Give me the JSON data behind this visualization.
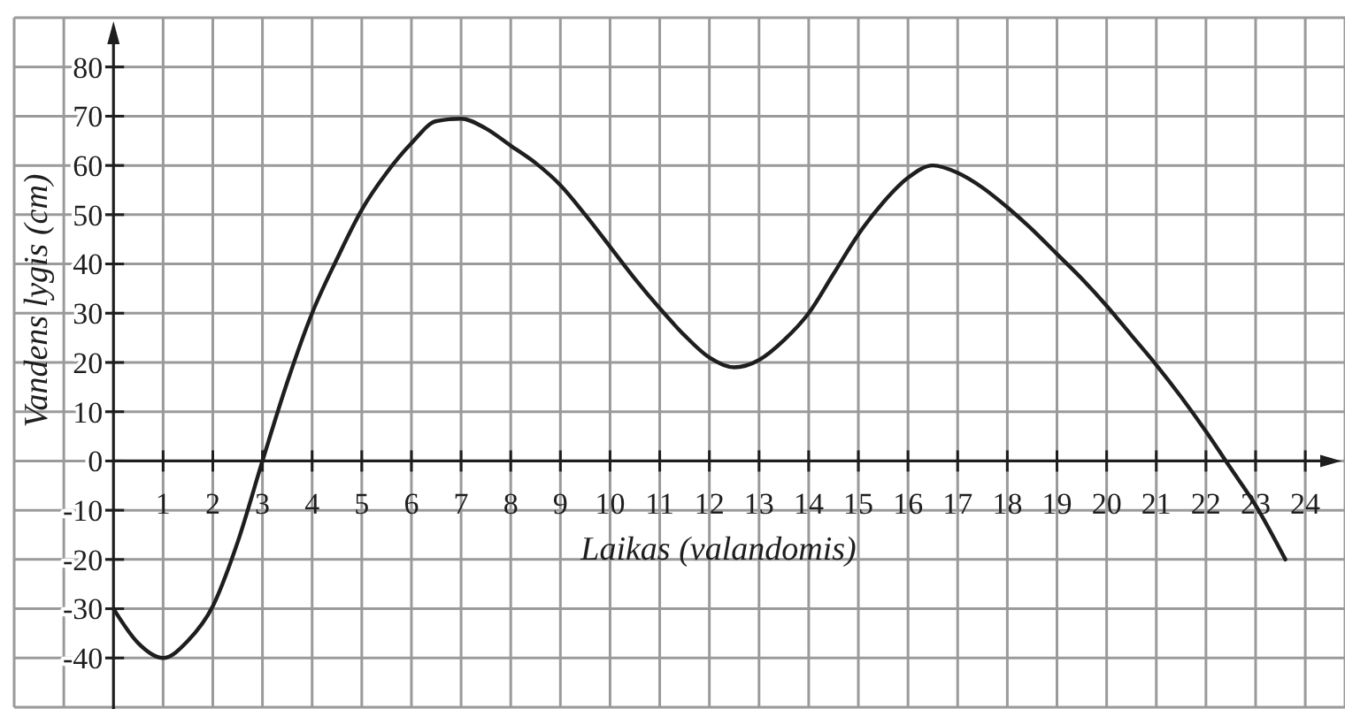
{
  "chart_data": {
    "type": "line",
    "xlabel": "Laikas (valandomis)",
    "ylabel": "Vandens lygis (cm)",
    "x": [
      0,
      0.5,
      1,
      1.5,
      2,
      2.5,
      3,
      3.5,
      4,
      4.5,
      5,
      5.5,
      6,
      6.5,
      7,
      7.5,
      8,
      8.5,
      9,
      9.5,
      10,
      10.5,
      11,
      11.5,
      12,
      12.5,
      13,
      13.5,
      14,
      14.5,
      15,
      15.5,
      16,
      16.5,
      17,
      17.5,
      18,
      18.5,
      19,
      19.5,
      20,
      20.5,
      21,
      21.5,
      22,
      22.5,
      23,
      23.6
    ],
    "series": [
      {
        "color": "#1e1e1e",
        "values": [
          -30,
          -37,
          -40,
          -36.5,
          -29.5,
          -16.5,
          0,
          16,
          30,
          41,
          51,
          58.5,
          64.5,
          69,
          69.5,
          67.5,
          64,
          60.5,
          56,
          50,
          43.5,
          37,
          31,
          25.5,
          21,
          19,
          20.5,
          24.5,
          30,
          38,
          46,
          52.5,
          57.5,
          60,
          58.5,
          55.5,
          51.5,
          47,
          42,
          37,
          31.5,
          25.5,
          19.5,
          13,
          6,
          -1.5,
          -9,
          -20
        ]
      }
    ],
    "xlim": [
      -2,
      24.8
    ],
    "ylim": [
      -50,
      90
    ],
    "xticks": [
      {
        "value": -2,
        "label": null
      },
      {
        "value": -1,
        "label": null
      },
      1,
      2,
      3,
      4,
      5,
      6,
      7,
      8,
      9,
      10,
      11,
      12,
      13,
      14,
      15,
      16,
      17,
      18,
      19,
      20,
      21,
      22,
      23,
      24
    ],
    "yticks": [
      {
        "value": -50,
        "label": null
      },
      -40,
      -30,
      -20,
      -10,
      0,
      10,
      20,
      30,
      40,
      50,
      60,
      70,
      80,
      {
        "value": 90,
        "label": null
      }
    ],
    "grid": true,
    "marker": "none",
    "line_style": "solid"
  }
}
